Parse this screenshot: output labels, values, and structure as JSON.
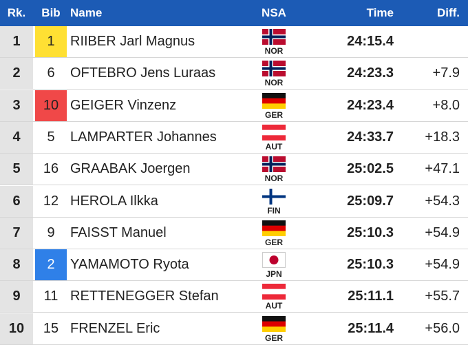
{
  "table": {
    "header": [
      "Rk.",
      "Bib",
      "Name",
      "NSA",
      "Time",
      "Diff."
    ],
    "rows": [
      {
        "rank": 1,
        "bib": 1,
        "bib_color": "#ffe033",
        "name": "RIIBER Jarl Magnus",
        "nsa": "NOR",
        "flag": {
          "kind": "cross",
          "colors": [
            "#ba0c2f",
            "#ffffff",
            "#00205b"
          ]
        },
        "time": "24:15.4"
      },
      {
        "rank": 2,
        "bib": 6,
        "name": "OFTEBRO Jens Luraas",
        "nsa": "NOR",
        "flag": {
          "kind": "cross",
          "colors": [
            "#ba0c2f",
            "#ffffff",
            "#00205b"
          ]
        },
        "time": "24:23.3",
        "diff": "+7.9"
      },
      {
        "rank": 3,
        "bib": 10,
        "bib_color": "#f04848",
        "name": "GEIGER Vinzenz",
        "nsa": "GER",
        "flag": {
          "kind": "stripes",
          "colors": [
            "#111111",
            "#dd0000",
            "#ffce00"
          ]
        },
        "time": "24:23.4",
        "diff": "+8.0"
      },
      {
        "rank": 4,
        "bib": 5,
        "name": "LAMPARTER Johannes",
        "nsa": "AUT",
        "flag": {
          "kind": "stripes",
          "colors": [
            "#ed2939",
            "#ffffff",
            "#ed2939"
          ]
        },
        "time": "24:33.7",
        "diff": "+18.3"
      },
      {
        "rank": 5,
        "bib": 16,
        "name": "GRAABAK Joergen",
        "nsa": "NOR",
        "flag": {
          "kind": "cross",
          "colors": [
            "#ba0c2f",
            "#ffffff",
            "#00205b"
          ]
        },
        "time": "25:02.5",
        "diff": "+47.1"
      },
      {
        "rank": 6,
        "bib": 12,
        "name": "HEROLA Ilkka",
        "nsa": "FIN",
        "flag": {
          "kind": "cross",
          "colors": [
            "#ffffff",
            "#ffffff",
            "#003580"
          ]
        },
        "time": "25:09.7",
        "diff": "+54.3"
      },
      {
        "rank": 7,
        "bib": 9,
        "name": "FAISST Manuel",
        "nsa": "GER",
        "flag": {
          "kind": "stripes",
          "colors": [
            "#111111",
            "#dd0000",
            "#ffce00"
          ]
        },
        "time": "25:10.3",
        "diff": "+54.9"
      },
      {
        "rank": 8,
        "bib": 2,
        "bib_color": "#2f80e8",
        "name": "YAMAMOTO Ryota",
        "nsa": "JPN",
        "flag": {
          "kind": "disc",
          "colors": [
            "#ffffff",
            "#bc002d"
          ]
        },
        "time": "25:10.3",
        "diff": "+54.9"
      },
      {
        "rank": 9,
        "bib": 11,
        "name": "RETTENEGGER Stefan",
        "nsa": "AUT",
        "flag": {
          "kind": "stripes",
          "colors": [
            "#ed2939",
            "#ffffff",
            "#ed2939"
          ]
        },
        "time": "25:11.1",
        "diff": "+55.7"
      },
      {
        "rank": 10,
        "bib": 15,
        "name": "FRENZEL Eric",
        "nsa": "GER",
        "flag": {
          "kind": "stripes",
          "colors": [
            "#111111",
            "#dd0000",
            "#ffce00"
          ]
        },
        "time": "25:11.4",
        "diff": "+56.0"
      }
    ]
  }
}
